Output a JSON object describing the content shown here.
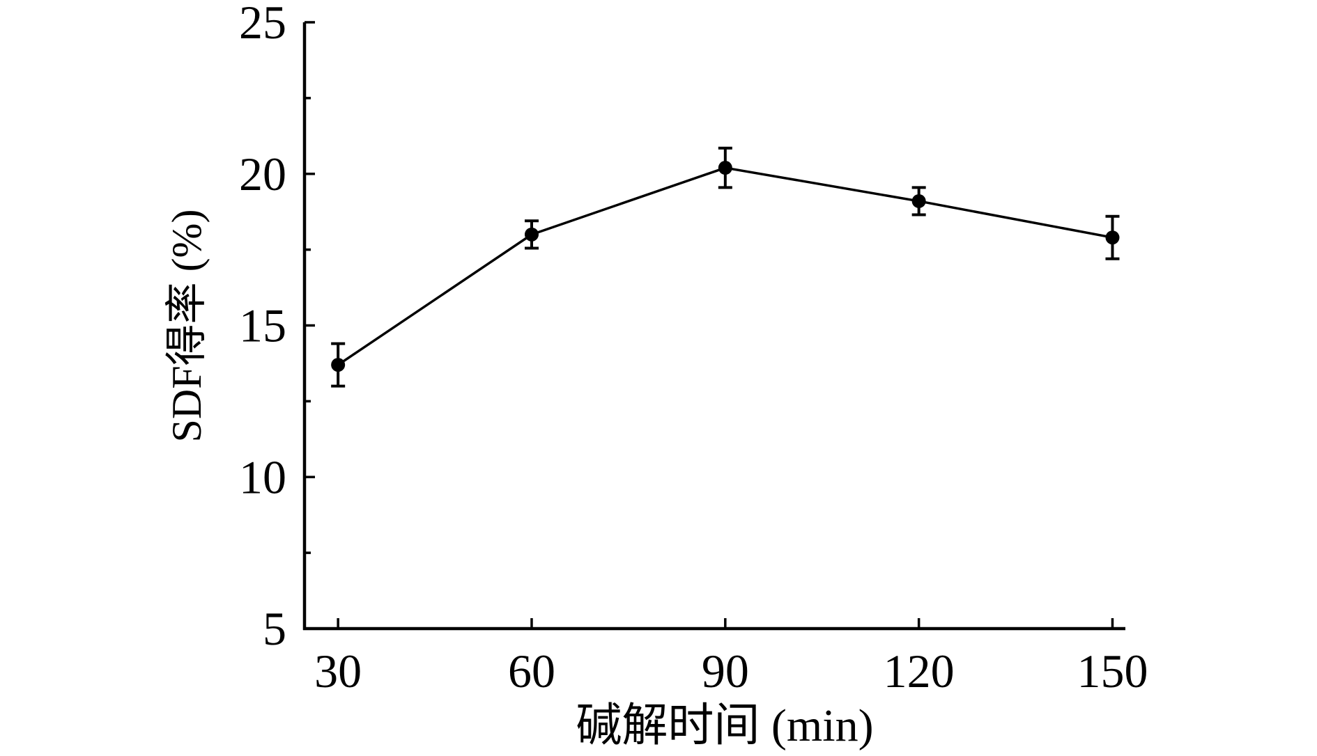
{
  "figure": {
    "background": "#ffffff",
    "ink_color": "#000000"
  },
  "chart_data": {
    "type": "line",
    "title": "",
    "xlabel": "碱解时间 (min)",
    "ylabel": "SDF得率 (%)",
    "x": [
      30,
      60,
      90,
      120,
      150
    ],
    "series": [
      {
        "name": "SDF得率",
        "values": [
          13.7,
          18.0,
          20.2,
          19.1,
          17.9
        ],
        "error": [
          0.7,
          0.45,
          0.65,
          0.45,
          0.7
        ],
        "marker": "filled-circle",
        "color": "#000000"
      }
    ],
    "x_ticks": [
      30,
      60,
      90,
      120,
      150
    ],
    "y_ticks": [
      5,
      10,
      15,
      20,
      25
    ],
    "y_minor_ticks": [
      7.5,
      12.5,
      17.5,
      22.5
    ],
    "xlim": [
      24.8,
      152
    ],
    "ylim": [
      5,
      25
    ],
    "grid": false,
    "legend": "none",
    "tick_direction": "in",
    "spines": [
      "left",
      "bottom"
    ]
  }
}
